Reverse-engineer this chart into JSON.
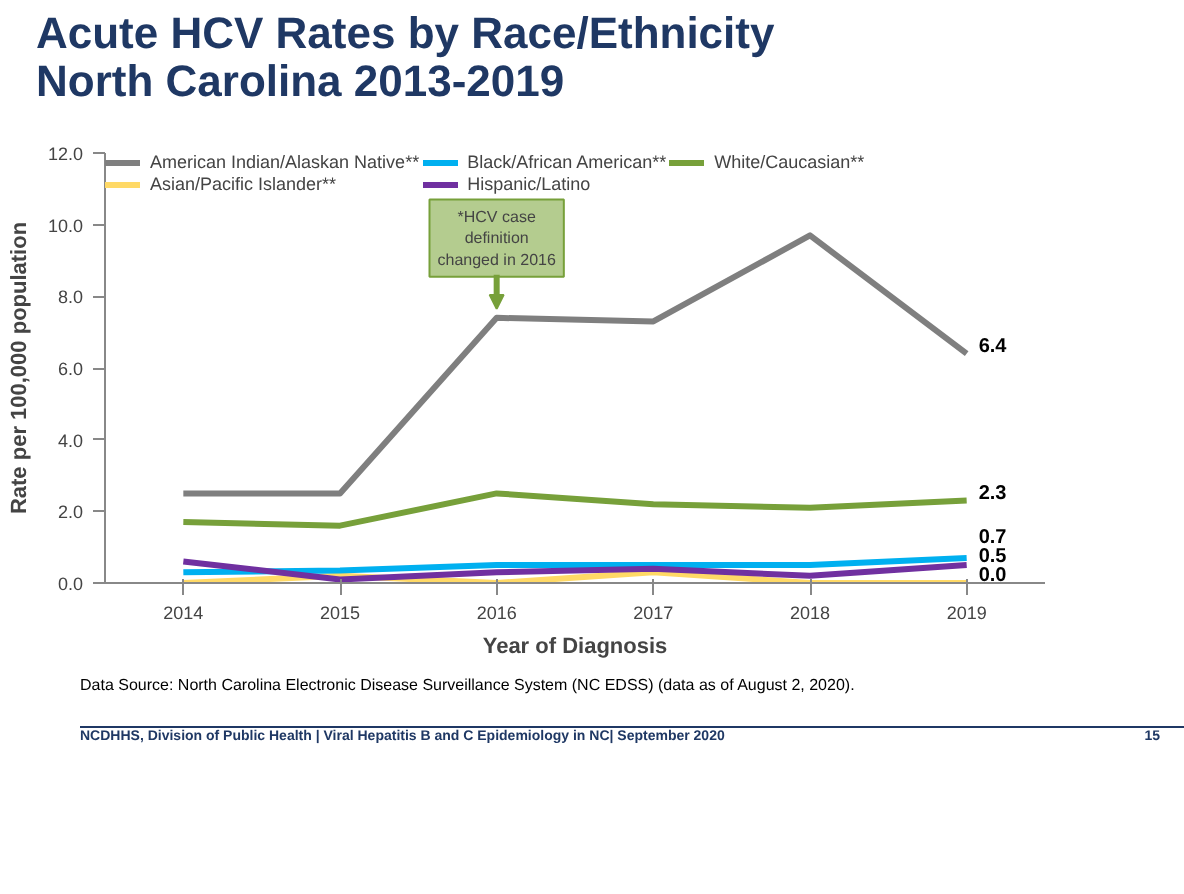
{
  "chart_data": {
    "type": "line",
    "title": "Acute HCV Rates by Race/Ethnicity North Carolina 2013-2019",
    "xlabel": "Year of Diagnosis",
    "ylabel": "Rate per 100,000 population",
    "categories": [
      "2014",
      "2015",
      "2016",
      "2017",
      "2018",
      "2019"
    ],
    "series": [
      {
        "name": "American Indian/Alaskan Native**",
        "color": "#7f7f7f",
        "values": [
          2.5,
          2.5,
          7.4,
          7.3,
          9.7,
          6.4
        ],
        "value_labels": [
          null,
          null,
          null,
          null,
          null,
          "6.4"
        ]
      },
      {
        "name": "Asian/Pacific Islander**",
        "color": "#ffd966",
        "values": [
          0.0,
          0.2,
          0.0,
          0.3,
          0.0,
          0.0
        ],
        "value_labels": [
          null,
          null,
          null,
          null,
          null,
          "0.0"
        ]
      },
      {
        "name": "Black/African American**",
        "color": "#00b0f0",
        "values": [
          0.3,
          0.35,
          0.5,
          0.5,
          0.5,
          0.7
        ],
        "value_labels": [
          null,
          null,
          null,
          null,
          null,
          "0.7"
        ]
      },
      {
        "name": "Hispanic/Latino",
        "color": "#7030a0",
        "values": [
          0.6,
          0.1,
          0.3,
          0.4,
          0.2,
          0.5
        ],
        "value_labels": [
          null,
          null,
          null,
          null,
          null,
          "0.5"
        ]
      },
      {
        "name": "White/Caucasian**",
        "color": "#77a03a",
        "values": [
          1.7,
          1.6,
          2.5,
          2.2,
          2.1,
          2.3
        ],
        "value_labels": [
          null,
          null,
          null,
          null,
          null,
          "2.3"
        ]
      }
    ],
    "ylim": [
      0,
      12
    ],
    "yticks": [
      {
        "value": 0,
        "label": "0.0"
      },
      {
        "value": 2,
        "label": "2.0"
      },
      {
        "value": 4,
        "label": "4.0"
      },
      {
        "value": 6,
        "label": "6.0"
      },
      {
        "value": 8,
        "label": "8.0"
      },
      {
        "value": 10,
        "label": "10.0"
      },
      {
        "value": 12,
        "label": "12.0"
      }
    ],
    "grid": false,
    "legend": "top",
    "line_style": "solid",
    "marker": "none",
    "annotations": [
      {
        "text": "*HCV case definition changed in 2016",
        "x": "2016",
        "y": 7.4
      },
      "Data Source: North Carolina Electronic Disease Surveillance System (NC EDSS) (data as of August 2, 2020).",
      "NCDHHS, Division of Public Health | Viral Hepatitis B and C Epidemiology in NC| September 2020",
      "15"
    ]
  }
}
